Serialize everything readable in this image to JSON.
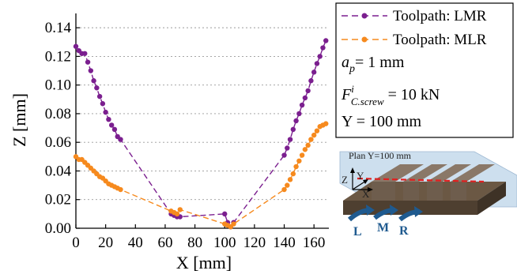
{
  "chart_data": {
    "type": "line",
    "xlabel": "X [mm]",
    "ylabel": "Z [mm]",
    "xlim": [
      0,
      170
    ],
    "ylim": [
      0,
      0.15
    ],
    "xticks": [
      "0",
      "20",
      "40",
      "60",
      "80",
      "100",
      "120",
      "140",
      "160"
    ],
    "yticks": [
      "0.00",
      "0.02",
      "0.04",
      "0.06",
      "0.08",
      "0.10",
      "0.12",
      "0.14"
    ],
    "grid": "horizontal dotted",
    "legend_position": "top-right",
    "series": [
      {
        "name": "Toolpath: LMR",
        "color": "#7b1f8f",
        "x": [
          0,
          2,
          4,
          6,
          8,
          10,
          12,
          14,
          16,
          18,
          20,
          22,
          24,
          26,
          28,
          30,
          64,
          66,
          68,
          70,
          100,
          102,
          104,
          106,
          140,
          142,
          144,
          146,
          148,
          150,
          152,
          154,
          156,
          158,
          160,
          162,
          164,
          166,
          168
        ],
        "y": [
          0.127,
          0.124,
          0.122,
          0.122,
          0.116,
          0.11,
          0.103,
          0.098,
          0.092,
          0.087,
          0.081,
          0.076,
          0.072,
          0.069,
          0.064,
          0.062,
          0.01,
          0.009,
          0.008,
          0.008,
          0.01,
          0.004,
          0.001,
          0.004,
          0.051,
          0.056,
          0.062,
          0.069,
          0.075,
          0.08,
          0.086,
          0.091,
          0.096,
          0.103,
          0.109,
          0.115,
          0.12,
          0.126,
          0.131
        ]
      },
      {
        "name": "Toolpath: MLR",
        "color": "#f68a1e",
        "x": [
          0,
          2,
          4,
          6,
          8,
          10,
          12,
          14,
          16,
          18,
          20,
          22,
          24,
          26,
          28,
          30,
          64,
          66,
          68,
          70,
          100,
          102,
          104,
          106,
          140,
          142,
          144,
          146,
          148,
          150,
          152,
          154,
          156,
          158,
          160,
          162,
          164,
          166,
          168
        ],
        "y": [
          0.05,
          0.048,
          0.048,
          0.046,
          0.044,
          0.042,
          0.04,
          0.038,
          0.036,
          0.035,
          0.033,
          0.031,
          0.03,
          0.029,
          0.028,
          0.027,
          0.012,
          0.011,
          0.01,
          0.013,
          0.003,
          0.002,
          0.001,
          0.003,
          0.027,
          0.03,
          0.034,
          0.038,
          0.043,
          0.047,
          0.051,
          0.055,
          0.058,
          0.062,
          0.065,
          0.068,
          0.071,
          0.072,
          0.073
        ]
      }
    ]
  },
  "legend": {
    "items": [
      "Toolpath: LMR",
      "Toolpath: MLR"
    ],
    "params": {
      "ap_main": "a",
      "ap_sub": "p",
      "ap_rest": "= 1 mm",
      "f_main": "F",
      "f_sup": "i",
      "f_sub": "C.screw",
      "f_rest": " = 10 kN",
      "y_line": "Y = 100 mm"
    }
  },
  "inset": {
    "plane_label": "Plan Y=100 mm",
    "axis_z": "Z",
    "axis_y": "Y",
    "axis_x": "X",
    "letters": [
      "L",
      "M",
      "R"
    ]
  }
}
